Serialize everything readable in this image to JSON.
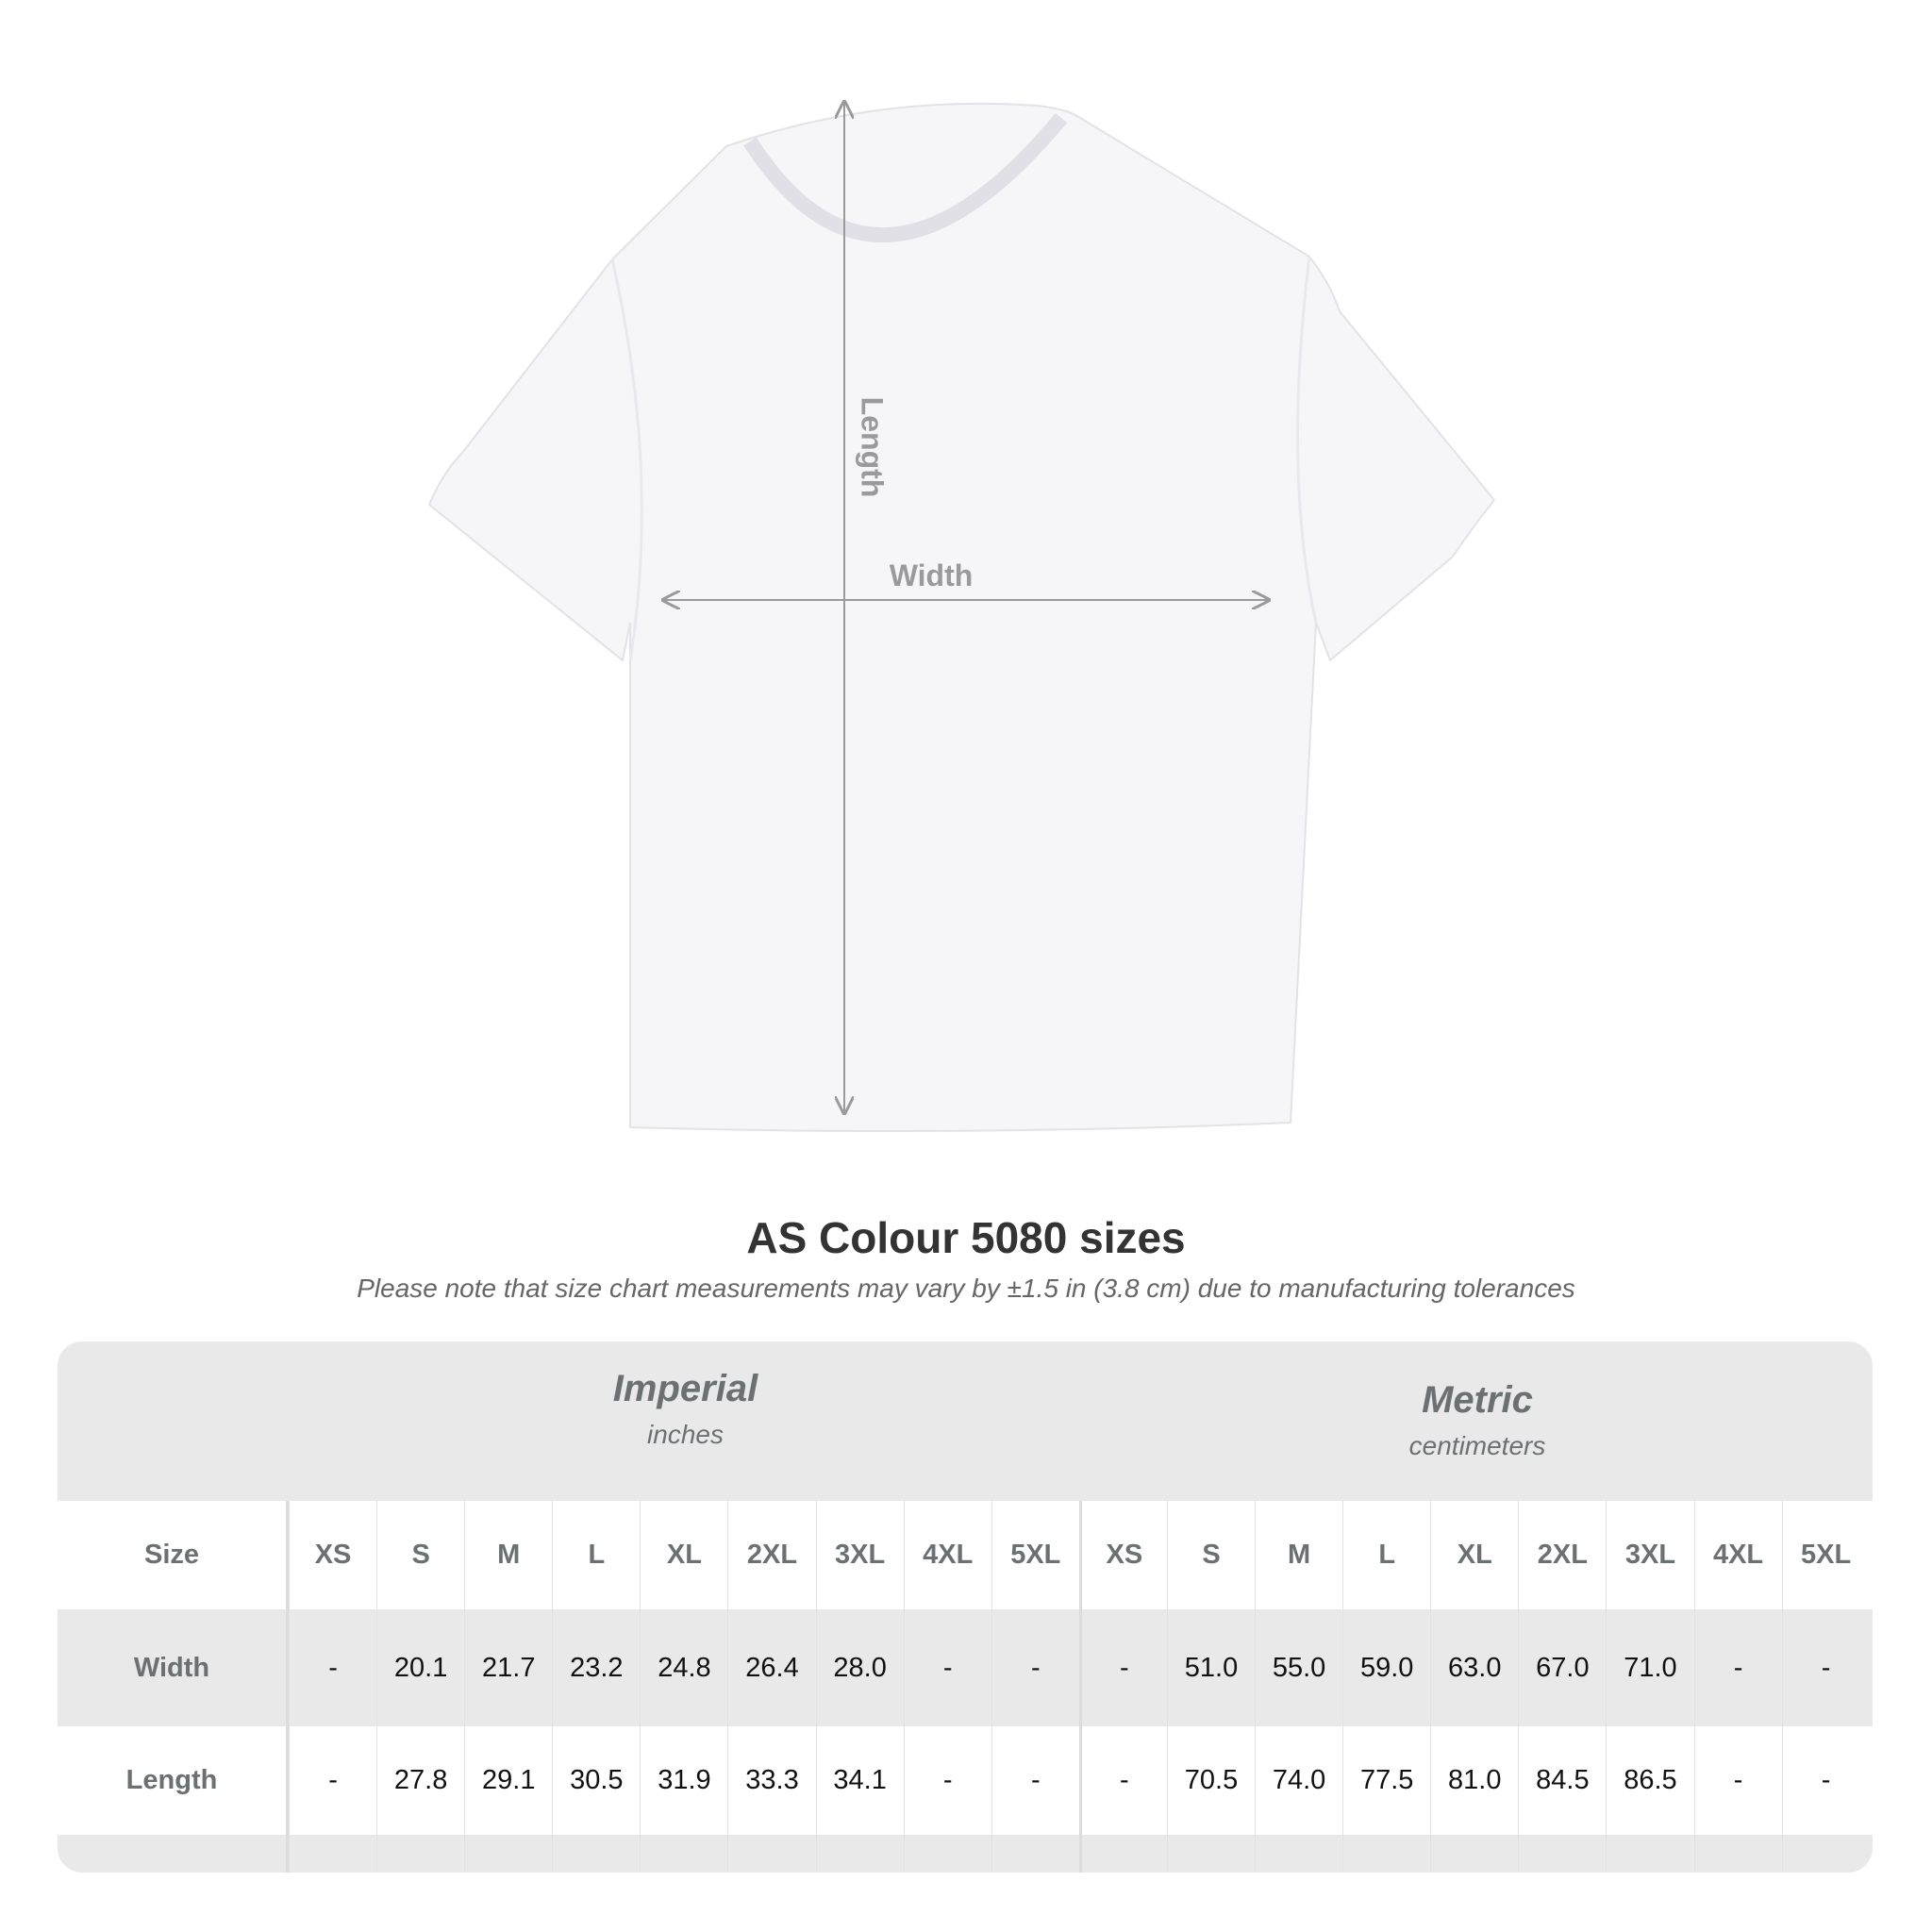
{
  "diagram": {
    "length_label": "Length",
    "width_label": "Width"
  },
  "title": "AS Colour 5080 sizes",
  "subtitle": "Please note that size chart measurements may vary by ±1.5 in (3.8 cm) due to manufacturing tolerances",
  "table": {
    "imperial": {
      "name": "Imperial",
      "unit": "inches"
    },
    "metric": {
      "name": "Metric",
      "unit": "centimeters"
    },
    "size_label": "Size",
    "sizes": [
      "XS",
      "S",
      "M",
      "L",
      "XL",
      "2XL",
      "3XL",
      "4XL",
      "5XL"
    ],
    "rows": [
      {
        "label": "Width",
        "imperial": [
          "-",
          "20.1",
          "21.7",
          "23.2",
          "24.8",
          "26.4",
          "28.0",
          "-",
          "-"
        ],
        "metric": [
          "-",
          "51.0",
          "55.0",
          "59.0",
          "63.0",
          "67.0",
          "71.0",
          "-",
          "-"
        ]
      },
      {
        "label": "Length",
        "imperial": [
          "-",
          "27.8",
          "29.1",
          "30.5",
          "31.9",
          "33.3",
          "34.1",
          "-",
          "-"
        ],
        "metric": [
          "-",
          "70.5",
          "74.0",
          "77.5",
          "81.0",
          "84.5",
          "86.5",
          "-",
          "-"
        ]
      }
    ]
  }
}
